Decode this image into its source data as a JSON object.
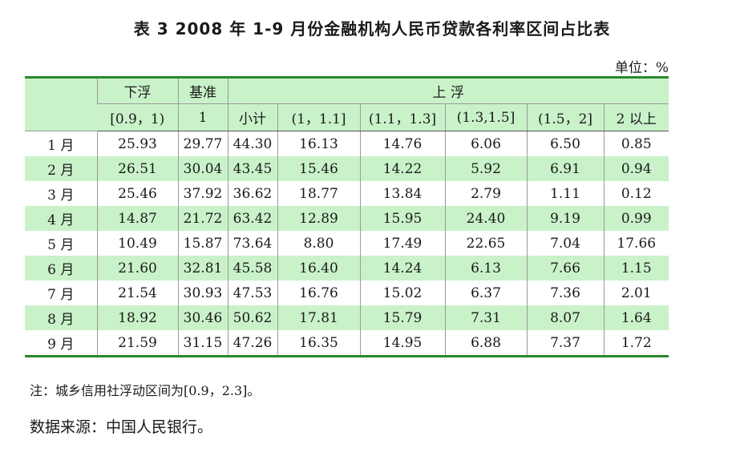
{
  "title": "表 3   2008 年 1-9 月份金融机构人民币贷款各利率区间占比表",
  "unit": "单位：%",
  "header": {
    "down": "下浮",
    "base": "基准",
    "up": "上  浮",
    "down_range": "[0.9，1)",
    "base_value": "1",
    "cols": [
      "小计",
      "(1，1.1]",
      "(1.1，1.3]",
      "(1.3,1.5]",
      "(1.5，2]",
      "2 以上"
    ]
  },
  "rows": [
    {
      "month": "1 月",
      "values": [
        "25.93",
        "29.77",
        "44.30",
        "16.13",
        "14.76",
        "6.06",
        "6.50",
        "0.85"
      ]
    },
    {
      "month": "2 月",
      "values": [
        "26.51",
        "30.04",
        "43.45",
        "15.46",
        "14.22",
        "5.92",
        "6.91",
        "0.94"
      ]
    },
    {
      "month": "3 月",
      "values": [
        "25.46",
        "37.92",
        "36.62",
        "18.77",
        "13.84",
        "2.79",
        "1.11",
        "0.12"
      ]
    },
    {
      "month": "4 月",
      "values": [
        "14.87",
        "21.72",
        "63.42",
        "12.89",
        "15.95",
        "24.40",
        "9.19",
        "0.99"
      ]
    },
    {
      "month": "5 月",
      "values": [
        "10.49",
        "15.87",
        "73.64",
        "8.80",
        "17.49",
        "22.65",
        "7.04",
        "17.66"
      ]
    },
    {
      "month": "6 月",
      "values": [
        "21.60",
        "32.81",
        "45.58",
        "16.40",
        "14.24",
        "6.13",
        "7.66",
        "1.15"
      ]
    },
    {
      "month": "7 月",
      "values": [
        "21.54",
        "30.93",
        "47.53",
        "16.76",
        "15.02",
        "6.37",
        "7.36",
        "2.01"
      ]
    },
    {
      "month": "8 月",
      "values": [
        "18.92",
        "30.46",
        "50.62",
        "17.81",
        "15.79",
        "7.31",
        "8.07",
        "1.64"
      ]
    },
    {
      "month": "9 月",
      "values": [
        "21.59",
        "31.15",
        "47.26",
        "16.35",
        "14.95",
        "6.88",
        "7.37",
        "1.72"
      ]
    }
  ],
  "note": "注：城乡信用社浮动区间为[0.9，2.3]。",
  "source": "数据来源：中国人民银行。",
  "colors": {
    "header_fill": "#c9f2c9",
    "rule": "#2a8a2a"
  }
}
